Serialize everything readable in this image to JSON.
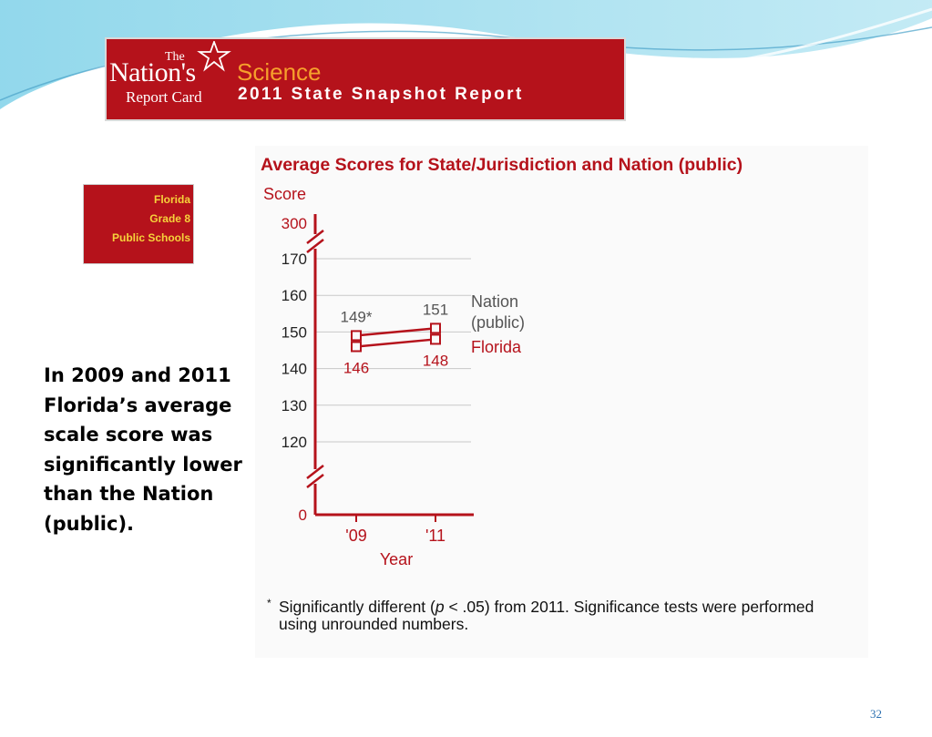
{
  "banner": {
    "logo_the": "The",
    "logo_nations": "Nation's",
    "logo_report_card": "Report Card",
    "subject": "Science",
    "report_title": "2011 State Snapshot Report"
  },
  "state_box": {
    "state": "Florida",
    "grade": "Grade 8",
    "schools": "Public Schools"
  },
  "note_text": "In 2009 and 2011 Florida’s average scale score was significantly lower than the Nation (public).",
  "chart_data": {
    "type": "line",
    "title": "Average Scores for State/Jurisdiction and Nation (public)",
    "ylabel": "Score",
    "xlabel": "Year",
    "categories": [
      "'09",
      "'11"
    ],
    "y_ticks": [
      120,
      130,
      140,
      150,
      160,
      170
    ],
    "y_axis_extra_ticks": [
      "300",
      "0"
    ],
    "ylim": [
      120,
      170
    ],
    "y_axis_break": true,
    "grid": true,
    "series": [
      {
        "name": "Nation (public)",
        "values": [
          149,
          151
        ],
        "labels": [
          "149*",
          "151"
        ],
        "color": "#b5121b",
        "marker": "square-open"
      },
      {
        "name": "Florida",
        "values": [
          146,
          148
        ],
        "labels": [
          "146",
          "148"
        ],
        "color": "#b5121b",
        "marker": "square-open"
      }
    ],
    "legend": [
      {
        "label_line1": "Nation",
        "label_line2": "(public)",
        "color": "#555555"
      },
      {
        "label_line1": "Florida",
        "color": "#b5121b"
      }
    ],
    "label_color_nation": "#555555",
    "label_color_florida": "#b5121b"
  },
  "footnote": {
    "marker": "*",
    "text_before": "Significantly different (",
    "p": "p",
    "text_after": " < .05) from 2011. Significance tests were performed using unrounded numbers."
  },
  "page_number": "32",
  "colors": {
    "brand_red": "#b5121b",
    "brand_orange": "#f6a02c",
    "state_text": "#f6d33b"
  }
}
